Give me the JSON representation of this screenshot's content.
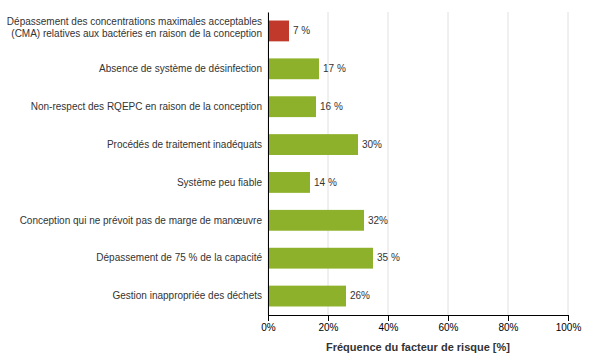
{
  "chart_data": {
    "type": "bar",
    "orientation": "horizontal",
    "categories": [
      "Gestion inappropriée des déchets",
      "Dépassement de 75 % de la capacité",
      "Conception qui ne prévoit pas de marge de manœuvre",
      "Système peu fiable",
      "Procédés de traitement inadéquats",
      "Non-respect des RQEPC en raison de la conception",
      "Absence de système de désinfection",
      "Dépassement des concentrations maximales acceptables\n(CMA) relatives aux bactéries en raison de la conception"
    ],
    "values": [
      26,
      35,
      32,
      14,
      30,
      16,
      17,
      7
    ],
    "value_labels": [
      "26%",
      "35 %",
      "32%",
      "14 %",
      "30%",
      "16 %",
      "17 %",
      "7 %"
    ],
    "data_labels": true,
    "colors": [
      "#8db12a",
      "#8db12a",
      "#8db12a",
      "#8db12a",
      "#8db12a",
      "#8db12a",
      "#8db12a",
      "#c0392b"
    ],
    "x_label": "Fréquence du facteur de risque [%]",
    "xlim": [
      0,
      100
    ],
    "xticks": [
      {
        "value": 0,
        "label": "0%"
      },
      {
        "value": 20,
        "label": "20%"
      },
      {
        "value": 40,
        "label": "40%"
      },
      {
        "value": 60,
        "label": "60%"
      },
      {
        "value": 80,
        "label": "80%"
      },
      {
        "value": 100,
        "label": "100%"
      }
    ],
    "grid": true
  }
}
